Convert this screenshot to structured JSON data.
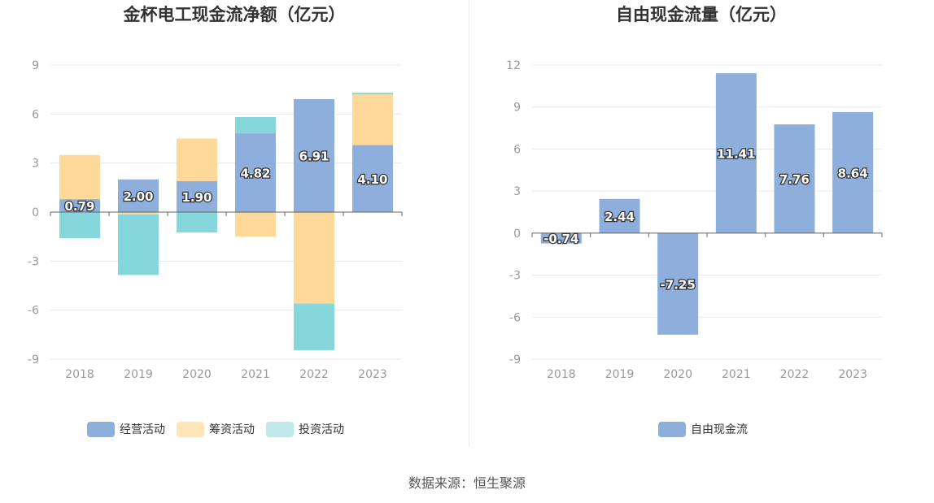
{
  "source": "数据来源：恒生聚源",
  "colors": {
    "operating": "#8eaedb",
    "financing": "#ffd99a",
    "investing": "#86d7db",
    "free_cash_flow": "#8eaedb",
    "grid": "#e6e9f0",
    "axis": "#666666"
  },
  "chart_data": [
    {
      "type": "bar",
      "stacked": true,
      "title": "金杯电工现金流净额（亿元）",
      "categories": [
        "2018",
        "2019",
        "2020",
        "2021",
        "2022",
        "2023"
      ],
      "ylim": [
        -9,
        9
      ],
      "yticks": [
        9,
        6,
        3,
        0,
        -3,
        -6,
        -9
      ],
      "series": [
        {
          "name": "经营活动",
          "values": [
            0.79,
            2.0,
            1.9,
            4.82,
            6.91,
            4.1
          ],
          "labels": [
            "0.79",
            "2.00",
            "1.90",
            "4.82",
            "6.91",
            "4.10"
          ]
        },
        {
          "name": "筹资活动",
          "values": [
            2.7,
            -0.15,
            2.6,
            -1.5,
            -5.6,
            3.1
          ]
        },
        {
          "name": "投资活动",
          "values": [
            -1.6,
            -3.7,
            -1.25,
            1.0,
            -2.85,
            0.1
          ]
        }
      ],
      "legend": [
        "经营活动",
        "筹资活动",
        "投资活动"
      ]
    },
    {
      "type": "bar",
      "title": "自由现金流量（亿元）",
      "categories": [
        "2018",
        "2019",
        "2020",
        "2021",
        "2022",
        "2023"
      ],
      "ylim": [
        -9,
        12
      ],
      "yticks": [
        12,
        9,
        6,
        3,
        0,
        -3,
        -6,
        -9
      ],
      "series": [
        {
          "name": "自由现金流",
          "values": [
            -0.74,
            2.44,
            -7.25,
            11.41,
            7.76,
            8.64
          ],
          "labels": [
            "-0.74",
            "2.44",
            "-7.25",
            "11.41",
            "7.76",
            "8.64"
          ]
        }
      ],
      "legend": [
        "自由现金流"
      ]
    }
  ]
}
